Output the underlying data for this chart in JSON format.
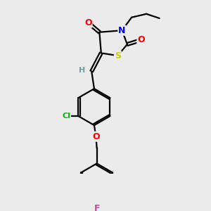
{
  "background_color": "#ebebeb",
  "atom_colors": {
    "C": "#000000",
    "H": "#6fa0a0",
    "O": "#ff0000",
    "N": "#0000ff",
    "S": "#cccc00",
    "Cl": "#00bb00",
    "F": "#cc44aa"
  },
  "bond_color": "#000000",
  "figsize": [
    3.0,
    3.0
  ],
  "dpi": 100,
  "xlim": [
    0,
    10
  ],
  "ylim": [
    0,
    10
  ]
}
